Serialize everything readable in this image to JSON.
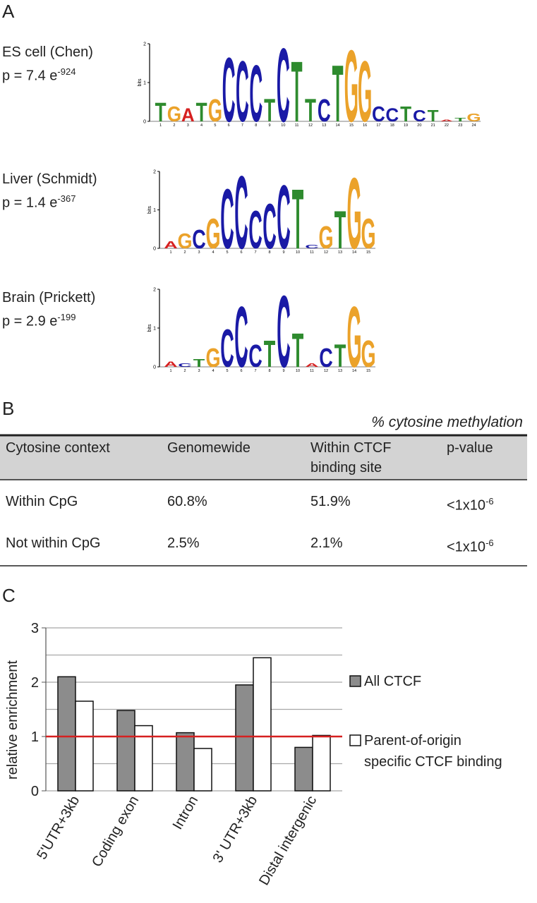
{
  "panel_labels": [
    "A",
    "B",
    "C"
  ],
  "motifs": {
    "y_label": "bits",
    "ylim": [
      0,
      2
    ],
    "yticks": [
      0,
      1,
      2
    ],
    "letter_colors": {
      "A": "#d62020",
      "C": "#1a1aa6",
      "G": "#eba22a",
      "T": "#2e8b2e"
    },
    "logos": [
      {
        "title": "ES cell (Chen)",
        "p_base": "p = 7.4 e",
        "p_exp": "-924",
        "positions": [
          1,
          2,
          3,
          4,
          5,
          6,
          7,
          8,
          9,
          10,
          11,
          12,
          13,
          14,
          15,
          16,
          17,
          18,
          19,
          20,
          21,
          22,
          23,
          24
        ],
        "letters": [
          "T",
          "G",
          "A",
          "T",
          "G",
          "C",
          "C",
          "C",
          "T",
          "C",
          "T",
          "T",
          "C",
          "T",
          "G",
          "G",
          "C",
          "C",
          "T",
          "C",
          "T",
          "A",
          "T",
          "G"
        ],
        "heights": [
          0.5,
          0.4,
          0.35,
          0.5,
          0.6,
          1.7,
          1.6,
          1.5,
          0.6,
          1.95,
          1.6,
          0.6,
          0.6,
          1.5,
          1.9,
          1.6,
          0.4,
          0.35,
          0.4,
          0.3,
          0.3,
          0.05,
          0.1,
          0.2
        ]
      },
      {
        "title": "Liver (Schmidt)",
        "p_base": "p = 1.4 e",
        "p_exp": "-367",
        "positions": [
          1,
          2,
          3,
          4,
          5,
          6,
          7,
          8,
          9,
          10,
          11,
          12,
          13,
          14,
          15
        ],
        "letters": [
          "A",
          "G",
          "C",
          "G",
          "C",
          "C",
          "C",
          "C",
          "C",
          "T",
          "C",
          "G",
          "T",
          "G",
          "G"
        ],
        "heights": [
          0.2,
          0.4,
          0.5,
          0.8,
          1.6,
          1.95,
          1.0,
          1.2,
          1.7,
          1.6,
          0.1,
          0.6,
          1.0,
          1.9,
          0.8
        ]
      },
      {
        "title": "Brain (Prickett)",
        "p_base": "p = 2.9 e",
        "p_exp": "-199",
        "positions": [
          1,
          2,
          3,
          4,
          5,
          6,
          7,
          8,
          9,
          10,
          11,
          12,
          13,
          14,
          15
        ],
        "letters": [
          "A",
          "C",
          "T",
          "G",
          "C",
          "C",
          "C",
          "T",
          "C",
          "T",
          "A",
          "C",
          "T",
          "G",
          "G"
        ],
        "heights": [
          0.15,
          0.1,
          0.2,
          0.5,
          1.0,
          1.6,
          0.6,
          0.7,
          1.9,
          0.9,
          0.1,
          0.5,
          0.6,
          1.6,
          0.7
        ]
      }
    ]
  },
  "table": {
    "caption": "% cytosine methylation",
    "header": [
      "Cytosine context",
      "Genomewide",
      "Within CTCF\nbinding site",
      "p-value"
    ],
    "rows": [
      [
        "Within CpG",
        "60.8%",
        "51.9%",
        {
          "base": "<1x10",
          "exp": "-6"
        }
      ],
      [
        "Not within CpG",
        "2.5%",
        "2.1%",
        {
          "base": "<1x10",
          "exp": "-6"
        }
      ]
    ]
  },
  "chart_data": {
    "type": "bar",
    "y_label": "relative enrichment",
    "categories": [
      "5'UTR+3kb",
      "Coding exon",
      "Intron",
      "3' UTR+3kb",
      "Distal intergenic"
    ],
    "series": [
      {
        "name": "All CTCF",
        "color": "#8c8c8c",
        "values": [
          2.1,
          1.48,
          1.07,
          1.95,
          0.8
        ]
      },
      {
        "name": "Parent-of-origin\nspecific CTCF binding",
        "color": "#ffffff",
        "values": [
          1.65,
          1.2,
          0.78,
          2.45,
          1.02
        ]
      }
    ],
    "ylim": [
      0,
      3
    ],
    "yticks": [
      0,
      1,
      2,
      3
    ],
    "minor_gridlines": [
      0.5,
      1.5,
      2.5
    ],
    "grid": true,
    "reference_line": {
      "value": 1,
      "color": "#d62020"
    },
    "legend": "right"
  }
}
